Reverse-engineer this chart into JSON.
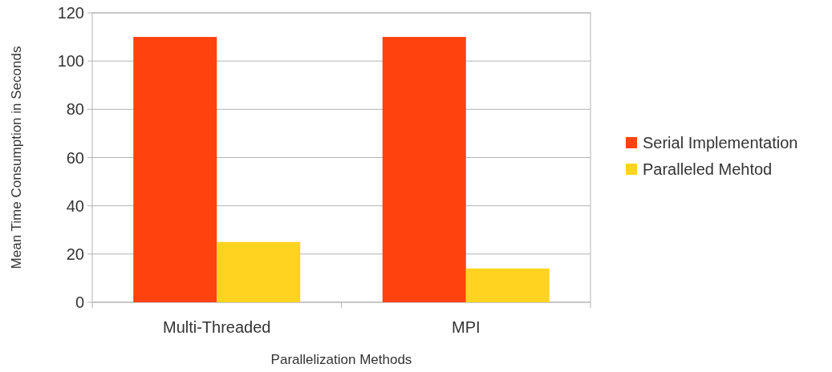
{
  "chart_data": {
    "type": "bar",
    "xlabel": "Parallelization Methods",
    "ylabel": "Mean Time Consumption in Seconds",
    "categories": [
      "Multi-Threaded",
      "MPI"
    ],
    "series": [
      {
        "name": "Serial Implementation",
        "color": "#ff420e",
        "values": [
          110,
          110
        ]
      },
      {
        "name": "Paralleled Mehtod",
        "color": "#ffd320",
        "values": [
          25,
          14
        ]
      }
    ],
    "ylim": [
      0,
      120
    ],
    "yticks": [
      0,
      20,
      40,
      60,
      80,
      100,
      120
    ],
    "grid": "y",
    "legend": "right"
  }
}
